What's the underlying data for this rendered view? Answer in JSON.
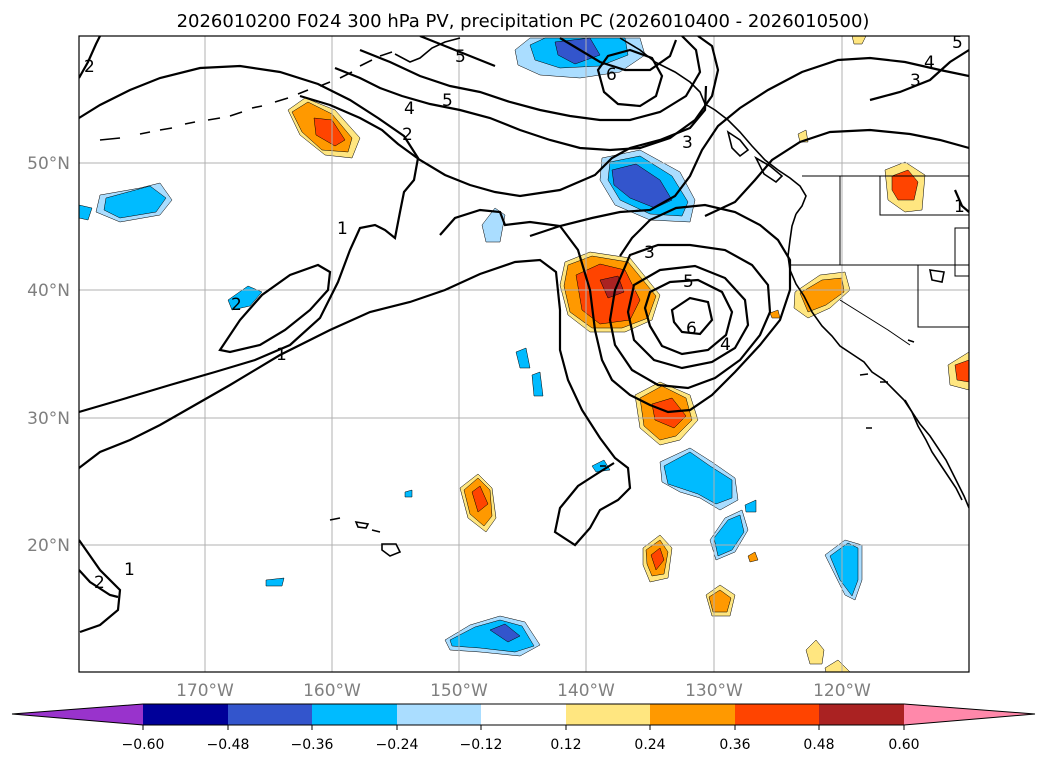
{
  "title": "2026010200 F024 300 hPa PV, precipitation PC (2026010400 - 2026010500)",
  "latitude_labels": [
    "50°N",
    "40°N",
    "30°N",
    "20°N"
  ],
  "longitude_labels": [
    "170°W",
    "160°W",
    "150°W",
    "140°W",
    "130°W",
    "120°W"
  ],
  "pv_contour_labels": [
    "6",
    "5",
    "5",
    "4",
    "3",
    "2",
    "1",
    "1",
    "2",
    "2",
    "1",
    "3",
    "5",
    "6",
    "4",
    "3",
    "4",
    "5",
    "2",
    "1"
  ],
  "colorbar": {
    "tick_labels": [
      "−0.60",
      "−0.48",
      "−0.36",
      "−0.24",
      "−0.12",
      "0.12",
      "0.24",
      "0.36",
      "0.48",
      "0.60"
    ],
    "colors": [
      "#9933cc",
      "#000099",
      "#3355cc",
      "#00bbff",
      "#aaddff",
      "#ffffff",
      "#ffe680",
      "#ff9900",
      "#ff4400",
      "#aa2222",
      "#ff88aa"
    ]
  },
  "shading_colors": {
    "neg_light": "#aaddff",
    "neg_mid": "#00bbff",
    "neg_strong": "#3355cc",
    "pos_light": "#ffe680",
    "pos_mid": "#ff9900",
    "pos_strong": "#ff4400",
    "pos_max": "#aa2222"
  }
}
